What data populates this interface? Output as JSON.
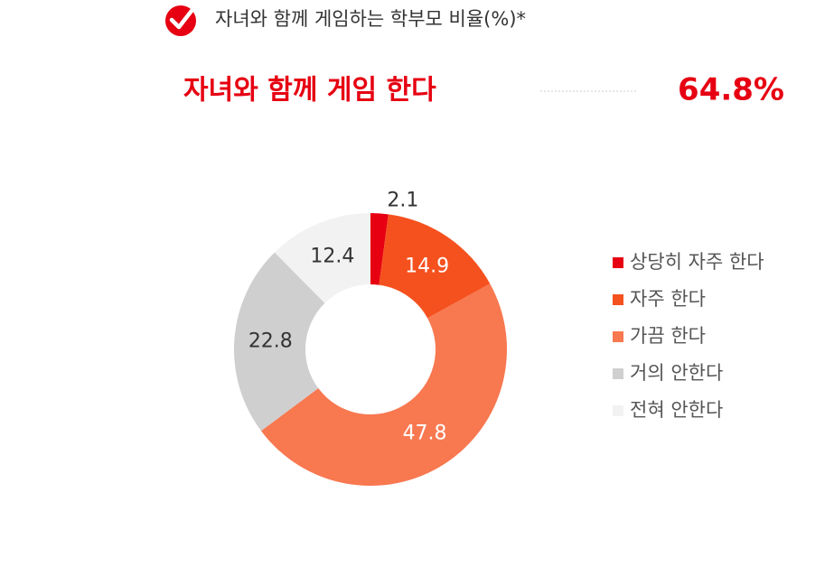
{
  "header": {
    "title": "자녀와 함께 게임하는 학부모 비율(%)*",
    "headline": "자녀와 함께 게임 한다",
    "headline_value": "64.8%"
  },
  "chart_data": {
    "type": "donut",
    "categories": [
      "상당히 자주 한다",
      "자주 한다",
      "가끔 한다",
      "거의 안한다",
      "전혀 안한다"
    ],
    "values": [
      2.1,
      14.9,
      47.8,
      22.8,
      12.4
    ],
    "colors": [
      "#e60012",
      "#f5511e",
      "#f87850",
      "#d0cfd0",
      "#f2f2f2"
    ],
    "legend": "right"
  }
}
